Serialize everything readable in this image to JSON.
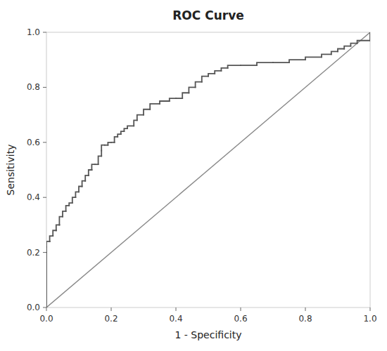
{
  "chart_data": {
    "type": "line",
    "title": "ROC Curve",
    "xlabel": "1 - Specificity",
    "ylabel": "Sensitivity",
    "xlim": [
      0.0,
      1.0
    ],
    "ylim": [
      0.0,
      1.0
    ],
    "xticks": [
      {
        "value": 0.0,
        "label": "0.0"
      },
      0.2,
      0.4,
      0.6,
      0.8,
      {
        "value": 1.0,
        "label": "1.0"
      }
    ],
    "yticks": [
      {
        "value": 0.0,
        "label": "0.0"
      },
      0.2,
      0.4,
      0.6,
      0.8,
      {
        "value": 1.0,
        "label": "1.0"
      }
    ],
    "grid": false,
    "series": [
      {
        "type": "line",
        "color": "#888888",
        "x": [
          0,
          1
        ],
        "values": [
          0,
          1
        ]
      },
      {
        "type": "step",
        "color": "#555555",
        "x": [
          0.0,
          0.0,
          0.0,
          0.0,
          0.01,
          0.01,
          0.02,
          0.02,
          0.03,
          0.03,
          0.04,
          0.04,
          0.05,
          0.06,
          0.07,
          0.08,
          0.09,
          0.1,
          0.11,
          0.12,
          0.12,
          0.13,
          0.13,
          0.14,
          0.14,
          0.15,
          0.16,
          0.17,
          0.17,
          0.18,
          0.19,
          0.2,
          0.21,
          0.22,
          0.23,
          0.24,
          0.25,
          0.27,
          0.28,
          0.3,
          0.32,
          0.35,
          0.38,
          0.4,
          0.42,
          0.44,
          0.46,
          0.48,
          0.5,
          0.52,
          0.54,
          0.56,
          0.6,
          0.65,
          0.7,
          0.75,
          0.8,
          0.85,
          0.88,
          0.9,
          0.92,
          0.94,
          0.96,
          1.0
        ],
        "values": [
          0.0,
          0.2,
          0.22,
          0.24,
          0.24,
          0.26,
          0.26,
          0.28,
          0.28,
          0.3,
          0.3,
          0.33,
          0.35,
          0.37,
          0.38,
          0.4,
          0.42,
          0.44,
          0.46,
          0.46,
          0.48,
          0.48,
          0.5,
          0.5,
          0.52,
          0.52,
          0.55,
          0.57,
          0.59,
          0.59,
          0.6,
          0.6,
          0.62,
          0.63,
          0.64,
          0.65,
          0.66,
          0.68,
          0.7,
          0.72,
          0.74,
          0.75,
          0.76,
          0.76,
          0.78,
          0.8,
          0.82,
          0.84,
          0.85,
          0.86,
          0.87,
          0.88,
          0.88,
          0.89,
          0.89,
          0.9,
          0.91,
          0.92,
          0.93,
          0.94,
          0.95,
          0.96,
          0.97,
          1.0
        ]
      }
    ]
  }
}
